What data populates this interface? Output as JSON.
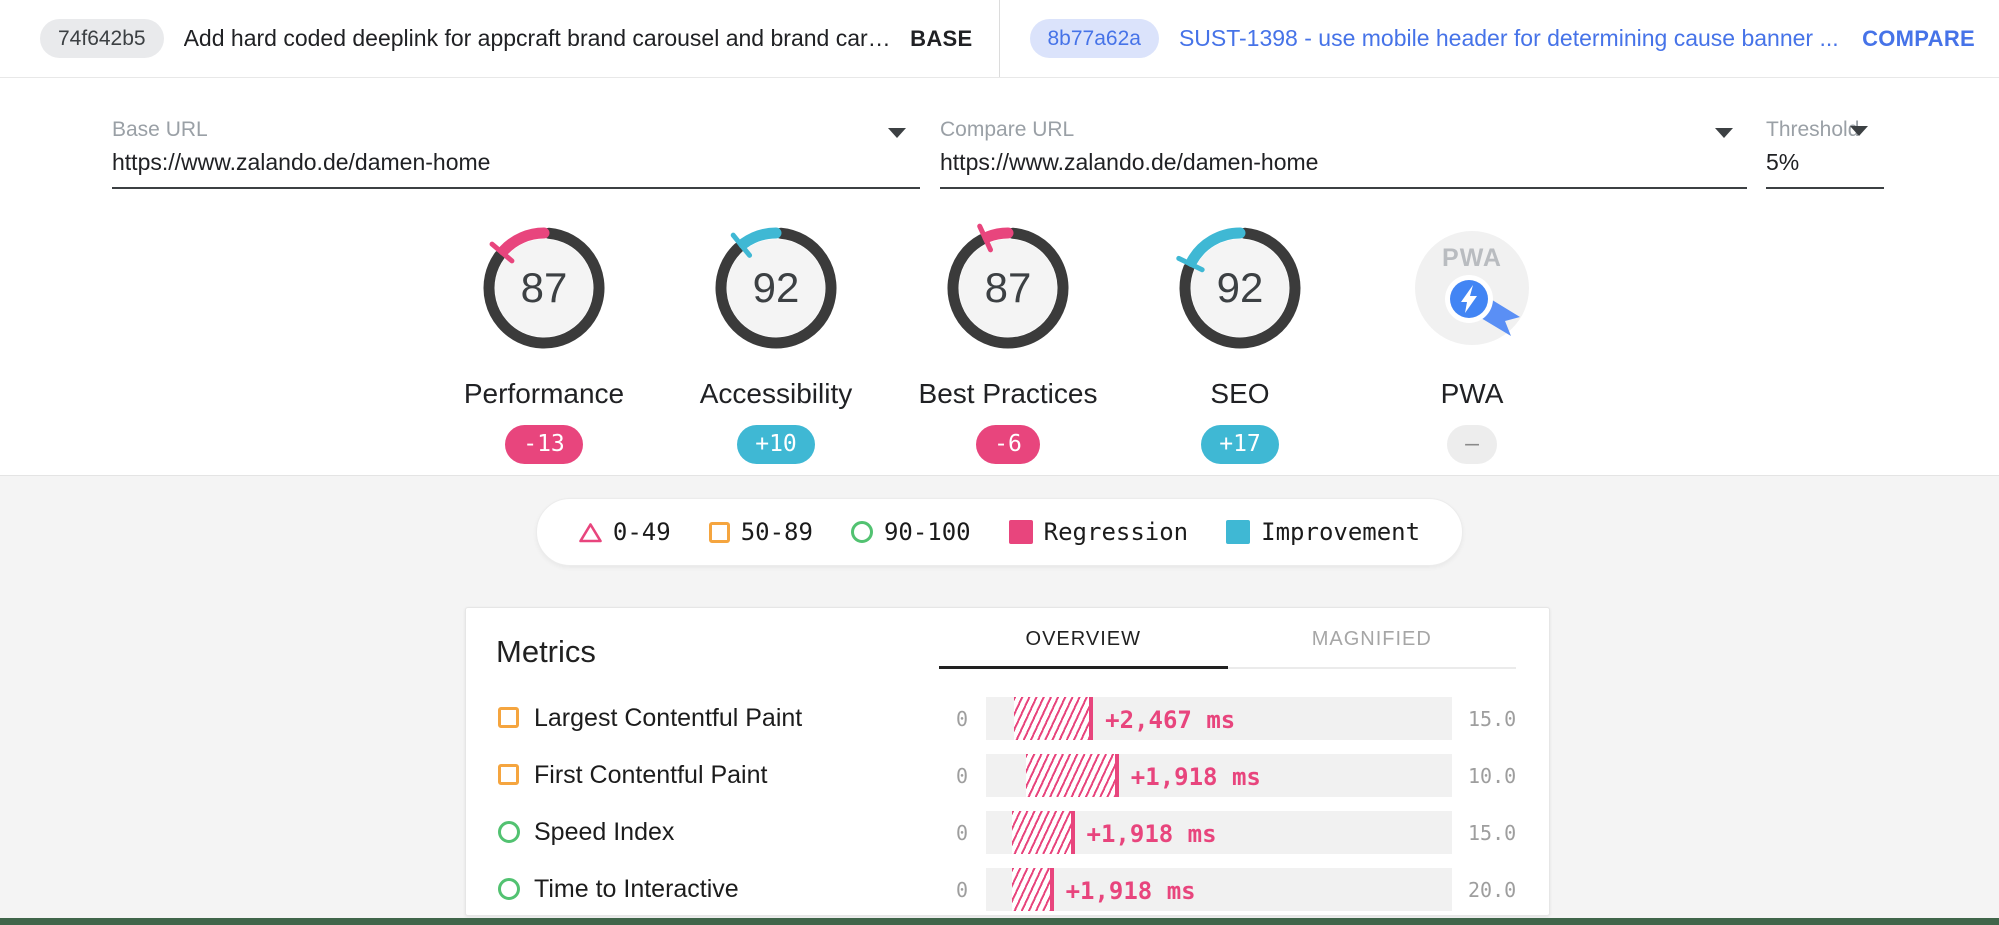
{
  "header": {
    "base": {
      "hash": "74f642b5",
      "message": "Add hard coded deeplink for appcraft brand carousel and brand card...",
      "role_label": "BASE"
    },
    "compare": {
      "hash": "8b77a62a",
      "message": "SUST-1398 - use mobile header for determining cause banner ...",
      "role_label": "COMPARE"
    }
  },
  "config": {
    "base_url": {
      "label": "Base URL",
      "value": "https://www.zalando.de/damen-home"
    },
    "compare_url": {
      "label": "Compare URL",
      "value": "https://www.zalando.de/damen-home"
    },
    "threshold": {
      "label": "Threshold",
      "value": "5%"
    }
  },
  "colors": {
    "regression": "#e8457d",
    "improvement": "#3fb8d4",
    "average": "#f5a53f",
    "pass": "#52c271",
    "gauge_ring": "#3b3b3b"
  },
  "gauges": [
    {
      "id": "performance",
      "label": "Performance",
      "score": 87,
      "diff": -13,
      "diff_label": "-13"
    },
    {
      "id": "accessibility",
      "label": "Accessibility",
      "score": 92,
      "diff": 10,
      "diff_label": "+10"
    },
    {
      "id": "best-practices",
      "label": "Best Practices",
      "score": 87,
      "diff": -6,
      "diff_label": "-6"
    },
    {
      "id": "seo",
      "label": "SEO",
      "score": 92,
      "diff": 17,
      "diff_label": "+17"
    },
    {
      "id": "pwa",
      "label": "PWA",
      "score": null,
      "diff": null,
      "diff_label": "–",
      "icon": "pwa-logo"
    }
  ],
  "legend": {
    "items": [
      {
        "icon": "triangle-fail",
        "label": "0-49"
      },
      {
        "icon": "square-average",
        "label": "50-89"
      },
      {
        "icon": "circle-pass",
        "label": "90-100"
      },
      {
        "icon": "regression-swatch",
        "label": "Regression"
      },
      {
        "icon": "improvement-swatch",
        "label": "Improvement"
      }
    ]
  },
  "metrics_card": {
    "title": "Metrics",
    "tabs": [
      {
        "label": "OVERVIEW",
        "active": true
      },
      {
        "label": "MAGNIFIED",
        "active": false
      }
    ],
    "rows": [
      {
        "icon": "square-average",
        "label": "Largest Contentful Paint",
        "min": "0",
        "max": "15.0",
        "value": "+2,467 ms",
        "bar_start_pct": 6,
        "bar_end_pct": 23
      },
      {
        "icon": "square-average",
        "label": "First Contentful Paint",
        "min": "0",
        "max": "10.0",
        "value": "+1,918 ms",
        "bar_start_pct": 8.5,
        "bar_end_pct": 28.5
      },
      {
        "icon": "circle-pass",
        "label": "Speed Index",
        "min": "0",
        "max": "15.0",
        "value": "+1,918 ms",
        "bar_start_pct": 5.5,
        "bar_end_pct": 19
      },
      {
        "icon": "circle-pass",
        "label": "Time to Interactive",
        "min": "0",
        "max": "20.0",
        "value": "+1,918 ms",
        "bar_start_pct": 5.5,
        "bar_end_pct": 14.5
      }
    ]
  }
}
